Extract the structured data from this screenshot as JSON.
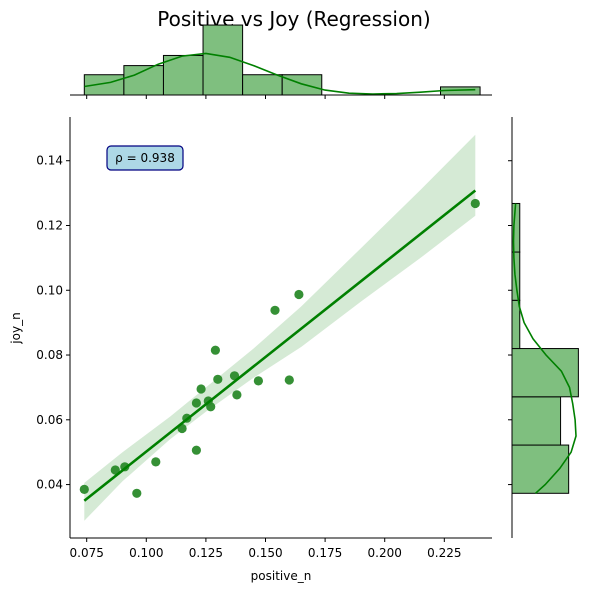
{
  "chart_data": {
    "type": "scatter",
    "title": "Positive vs Joy (Regression)",
    "xlabel": "positive_n",
    "ylabel": "joy_n",
    "xlim": [
      0.068,
      0.245
    ],
    "ylim": [
      0.0235,
      0.1535
    ],
    "xticks": [
      0.075,
      0.1,
      0.125,
      0.15,
      0.175,
      0.2,
      0.225
    ],
    "xtick_labels": [
      "0.075",
      "0.100",
      "0.125",
      "0.150",
      "0.175",
      "0.200",
      "0.225"
    ],
    "yticks": [
      0.04,
      0.06,
      0.08,
      0.1,
      0.12,
      0.14
    ],
    "ytick_labels": [
      "0.04",
      "0.06",
      "0.08",
      "0.10",
      "0.12",
      "0.14"
    ],
    "annotation": "ρ = 0.938",
    "colors": {
      "points": "#2a8a2a",
      "line": "#008000",
      "band": "#d5ead5",
      "hist_fill": "#7fbf7f",
      "annot_fill": "#add8e6",
      "annot_edge": "#000080"
    },
    "points": [
      {
        "x": 0.074,
        "y": 0.0385
      },
      {
        "x": 0.087,
        "y": 0.0445
      },
      {
        "x": 0.091,
        "y": 0.0455
      },
      {
        "x": 0.096,
        "y": 0.0373
      },
      {
        "x": 0.104,
        "y": 0.047
      },
      {
        "x": 0.115,
        "y": 0.0573
      },
      {
        "x": 0.117,
        "y": 0.0605
      },
      {
        "x": 0.121,
        "y": 0.0652
      },
      {
        "x": 0.121,
        "y": 0.0506
      },
      {
        "x": 0.123,
        "y": 0.0695
      },
      {
        "x": 0.126,
        "y": 0.0658
      },
      {
        "x": 0.127,
        "y": 0.064
      },
      {
        "x": 0.129,
        "y": 0.0815
      },
      {
        "x": 0.13,
        "y": 0.0725
      },
      {
        "x": 0.137,
        "y": 0.0736
      },
      {
        "x": 0.138,
        "y": 0.0677
      },
      {
        "x": 0.147,
        "y": 0.072
      },
      {
        "x": 0.154,
        "y": 0.0938
      },
      {
        "x": 0.16,
        "y": 0.0723
      },
      {
        "x": 0.164,
        "y": 0.0987
      },
      {
        "x": 0.238,
        "y": 0.1268
      }
    ],
    "regression": {
      "x": [
        0.074,
        0.238
      ],
      "y": [
        0.035,
        0.1308
      ]
    },
    "confidence_band": {
      "x": [
        0.074,
        0.09,
        0.11,
        0.125,
        0.145,
        0.165,
        0.19,
        0.215,
        0.238
      ],
      "lower": [
        0.0288,
        0.041,
        0.054,
        0.0625,
        0.073,
        0.0825,
        0.0965,
        0.11,
        0.123
      ],
      "upper": [
        0.0405,
        0.05,
        0.061,
        0.07,
        0.082,
        0.095,
        0.113,
        0.131,
        0.148
      ]
    },
    "x_histogram": {
      "bins": [
        0.074,
        0.0906,
        0.1072,
        0.1238,
        0.1404,
        0.157,
        0.1736,
        0.1902,
        0.2068,
        0.2234,
        0.24
      ],
      "counts": [
        1,
        1.45,
        1.95,
        3.45,
        1,
        1,
        0,
        0,
        0,
        0.4
      ],
      "kde": {
        "x": [
          0.074,
          0.085,
          0.095,
          0.105,
          0.115,
          0.125,
          0.135,
          0.145,
          0.155,
          0.165,
          0.175,
          0.185,
          0.195,
          0.205,
          0.215,
          0.225,
          0.238
        ],
        "y": [
          0.42,
          0.62,
          0.98,
          1.52,
          1.92,
          2.05,
          1.86,
          1.45,
          0.98,
          0.55,
          0.24,
          0.09,
          0.05,
          0.07,
          0.14,
          0.22,
          0.26
        ]
      }
    },
    "y_histogram": {
      "bins": [
        0.0373,
        0.0522,
        0.0671,
        0.082,
        0.0969,
        0.1118,
        0.1268
      ],
      "counts": [
        3.5,
        3.0,
        4.1,
        0.48,
        0.48,
        0.48
      ],
      "kde": {
        "y": [
          0.0373,
          0.04,
          0.045,
          0.05,
          0.055,
          0.06,
          0.065,
          0.07,
          0.075,
          0.08,
          0.085,
          0.09,
          0.095,
          0.1,
          0.105,
          0.11,
          0.115,
          0.12,
          0.1268
        ],
        "x": [
          1.45,
          2.05,
          2.95,
          3.65,
          3.95,
          3.9,
          3.75,
          3.55,
          3.05,
          2.1,
          1.3,
          0.75,
          0.45,
          0.3,
          0.18,
          0.12,
          0.09,
          0.12,
          0.22
        ]
      }
    }
  }
}
